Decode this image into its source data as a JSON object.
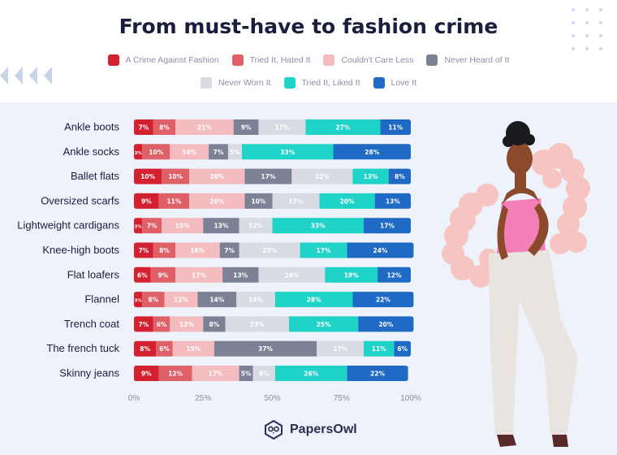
{
  "title": "From must-have to fashion crime",
  "brand": "PapersOwl",
  "chart_data": {
    "type": "bar",
    "orientation": "horizontal",
    "stacked": true,
    "title": "From must-have to fashion crime",
    "xlim": [
      0,
      100
    ],
    "x_ticks": [
      "0%",
      "25%",
      "50%",
      "75%",
      "100%"
    ],
    "legend_position": "top",
    "categories": [
      "Ankle boots",
      "Ankle socks",
      "Ballet flats",
      "Oversized scarfs",
      "Lightweight cardigans",
      "Knee-high boots",
      "Flat loafers",
      "Flannel",
      "Trench coat",
      "The french tuck",
      "Skinny jeans"
    ],
    "series": [
      {
        "name": "A Crime Against Fashion",
        "color": "#d3212f",
        "values": [
          7,
          3,
          10,
          9,
          3,
          7,
          6,
          3,
          7,
          8,
          9
        ]
      },
      {
        "name": "Tried It, Hated It",
        "color": "#e06068",
        "values": [
          8,
          10,
          10,
          11,
          7,
          8,
          9,
          8,
          6,
          6,
          12
        ]
      },
      {
        "name": "Couldn't Care Less",
        "color": "#f5bcc0",
        "values": [
          21,
          14,
          20,
          20,
          15,
          16,
          17,
          12,
          12,
          15,
          17
        ]
      },
      {
        "name": "Never Heard of It",
        "color": "#7c8296",
        "values": [
          9,
          7,
          17,
          10,
          13,
          7,
          13,
          14,
          8,
          37,
          5
        ]
      },
      {
        "name": "Never Worn It",
        "color": "#d9dbe3",
        "values": [
          17,
          5,
          22,
          17,
          12,
          22,
          24,
          14,
          23,
          17,
          8
        ]
      },
      {
        "name": "Tried It, Liked It",
        "color": "#1fd3c8",
        "values": [
          27,
          33,
          13,
          20,
          33,
          17,
          19,
          28,
          25,
          11,
          26
        ]
      },
      {
        "name": "Love It",
        "color": "#1f6ac4",
        "values": [
          11,
          28,
          8,
          13,
          17,
          24,
          12,
          22,
          20,
          6,
          22
        ]
      }
    ]
  }
}
